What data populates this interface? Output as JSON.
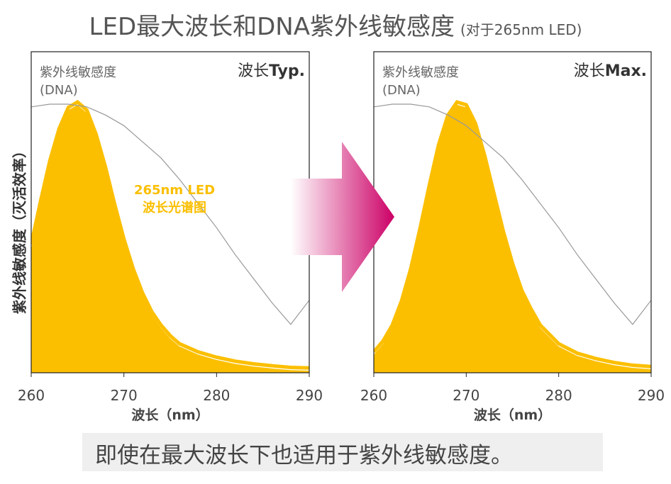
{
  "title": {
    "main": "LED最大波长和DNA紫外线敏感度",
    "sub": "(对于265nm LED)"
  },
  "y_axis_label": "紫外线敏感度（灭活效率）",
  "caption": "即使在最大波长下也适用于紫外线敏感度。",
  "colors": {
    "led_fill": "#fbbf00",
    "dna_line": "#999999",
    "arrow_start": "#ffffff",
    "arrow_end": "#cc0066",
    "caption_bg": "#efefef"
  },
  "arrow": {
    "icon": "right-arrow-icon"
  },
  "chart_data": [
    {
      "type": "area",
      "corner_label_prefix": "波长",
      "corner_label_suffix": "Typ.",
      "xlabel": "波长（nm）",
      "xlim": [
        260,
        290
      ],
      "x_ticks": [
        "260",
        "270",
        "280",
        "290"
      ],
      "ylim": [
        0,
        1
      ],
      "grid": false,
      "annotation": {
        "line1": "265nm LED",
        "line2": "波长光谱图"
      },
      "series": [
        {
          "name": "紫外线敏感度(DNA)",
          "label_line1": "紫外线敏感度",
          "label_line2": "(DNA)",
          "style": "line",
          "x": [
            260,
            262,
            264,
            266,
            268,
            270,
            272,
            274,
            276,
            278,
            280,
            282,
            284,
            286,
            288,
            290
          ],
          "y": [
            0.99,
            1.0,
            1.0,
            0.99,
            0.96,
            0.92,
            0.86,
            0.8,
            0.72,
            0.63,
            0.54,
            0.44,
            0.35,
            0.26,
            0.18,
            0.27
          ]
        },
        {
          "name": "265nm LED",
          "style": "filled-area",
          "x": [
            260,
            261,
            262,
            263,
            264,
            265,
            266,
            267,
            268,
            269,
            270,
            271,
            272,
            273,
            274,
            275,
            276,
            278,
            280,
            282,
            284,
            286,
            288,
            290
          ],
          "y": [
            0.47,
            0.63,
            0.78,
            0.9,
            0.98,
            1.0,
            0.97,
            0.88,
            0.76,
            0.62,
            0.49,
            0.38,
            0.29,
            0.22,
            0.17,
            0.13,
            0.1,
            0.07,
            0.05,
            0.035,
            0.025,
            0.018,
            0.012,
            0.01
          ]
        }
      ]
    },
    {
      "type": "area",
      "corner_label_prefix": "波长",
      "corner_label_suffix": "Max.",
      "xlabel": "波长（nm）",
      "xlim": [
        260,
        290
      ],
      "x_ticks": [
        "260",
        "270",
        "280",
        "290"
      ],
      "ylim": [
        0,
        1
      ],
      "grid": false,
      "series": [
        {
          "name": "紫外线敏感度(DNA)",
          "label_line1": "紫外线敏感度",
          "label_line2": "(DNA)",
          "style": "line",
          "x": [
            260,
            262,
            264,
            266,
            268,
            270,
            272,
            274,
            276,
            278,
            280,
            282,
            284,
            286,
            288,
            290
          ],
          "y": [
            0.99,
            1.0,
            1.0,
            0.99,
            0.96,
            0.92,
            0.86,
            0.8,
            0.72,
            0.63,
            0.54,
            0.44,
            0.35,
            0.26,
            0.18,
            0.27
          ]
        },
        {
          "name": "265nm LED",
          "style": "filled-area",
          "x": [
            260,
            261,
            262,
            263,
            264,
            265,
            266,
            267,
            268,
            269,
            270,
            271,
            272,
            273,
            274,
            275,
            276,
            277,
            278,
            280,
            282,
            284,
            286,
            288,
            290
          ],
          "y": [
            0.07,
            0.11,
            0.17,
            0.26,
            0.38,
            0.53,
            0.69,
            0.84,
            0.95,
            1.0,
            0.99,
            0.92,
            0.8,
            0.66,
            0.52,
            0.4,
            0.3,
            0.23,
            0.17,
            0.1,
            0.065,
            0.045,
            0.03,
            0.02,
            0.015
          ]
        }
      ]
    }
  ]
}
